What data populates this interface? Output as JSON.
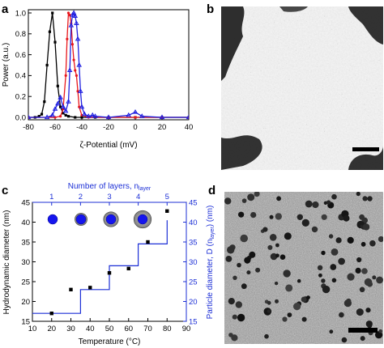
{
  "panels": {
    "a": "a",
    "b": "b",
    "c": "c",
    "d": "d"
  },
  "chart_data": [
    {
      "panel": "a",
      "type": "line",
      "xlabel": "ζ-Potential (mV)",
      "ylabel": "Power (a.u.)",
      "xlim": [
        -80,
        40
      ],
      "ylim": [
        0,
        1.0
      ],
      "xticks": [
        -80,
        -60,
        -40,
        -20,
        0,
        20,
        40
      ],
      "yticks": [
        0.0,
        0.2,
        0.4,
        0.6,
        0.8,
        1.0
      ],
      "ytick_labels": [
        "0.0",
        "0.2",
        "0.4",
        "0.6",
        "0.8",
        "1.0"
      ],
      "series": [
        {
          "color": "#000000",
          "marker": "square",
          "x": [
            -80,
            -75,
            -72,
            -70,
            -68,
            -66,
            -64,
            -62,
            -60,
            -58,
            -56,
            -54,
            -52,
            -50,
            -45,
            -40,
            -30,
            -20,
            0,
            20,
            40
          ],
          "y": [
            0,
            0,
            0.01,
            0.03,
            0.15,
            0.5,
            0.82,
            1.0,
            0.72,
            0.3,
            0.1,
            0.04,
            0.02,
            0.01,
            0,
            0,
            0,
            0,
            0,
            0,
            0
          ]
        },
        {
          "color": "#e8171c",
          "marker": "circle",
          "x": [
            -80,
            -60,
            -56,
            -54,
            -52,
            -51,
            -50,
            -49,
            -48,
            -47,
            -46,
            -45,
            -44,
            -43,
            -42,
            -40,
            -35,
            -20,
            0,
            20,
            40
          ],
          "y": [
            0,
            0,
            0.01,
            0.08,
            0.4,
            0.75,
            1.0,
            0.98,
            0.9,
            0.7,
            0.55,
            0.45,
            0.4,
            0.25,
            0.1,
            0.02,
            0,
            0,
            0,
            0,
            0
          ]
        },
        {
          "color": "#1f1fe0",
          "marker": "triangle",
          "x": [
            -80,
            -66,
            -62,
            -60,
            -58,
            -56,
            -54,
            -52,
            -50,
            -49,
            -48,
            -47,
            -46,
            -45,
            -44,
            -43,
            -42,
            -41,
            -40,
            -38,
            -35,
            -32,
            -30,
            -20,
            -5,
            0,
            5,
            20,
            40
          ],
          "y": [
            0,
            0,
            0.02,
            0.08,
            0.13,
            0.19,
            0.1,
            0.06,
            0.15,
            0.45,
            0.88,
            0.98,
            1.0,
            0.97,
            0.9,
            0.75,
            0.5,
            0.25,
            0.1,
            0.03,
            0.01,
            0.02,
            0.01,
            0,
            0.02,
            0.05,
            0.01,
            0,
            0
          ]
        }
      ]
    },
    {
      "panel": "c",
      "type": "scatter",
      "xlabel": "Temperature (°C)",
      "ylabel": "Hydrodynamic diameter (nm)",
      "ylabel2": "Particle diameter, D (n",
      "ylabel2_sub": "layer",
      "ylabel2_end": ") (nm)",
      "xlabel2": "Number of layers, n",
      "xlabel2_sub": "layer",
      "xlim": [
        10,
        90
      ],
      "ylim": [
        15,
        45
      ],
      "xticks": [
        10,
        20,
        30,
        40,
        50,
        60,
        70,
        80,
        90
      ],
      "yticks": [
        15,
        20,
        25,
        30,
        35,
        40,
        45
      ],
      "x2ticks": [
        1,
        2,
        3,
        4,
        5
      ],
      "x2tick_positions_temp": [
        20,
        35,
        50,
        65,
        80
      ],
      "scatter": {
        "x": [
          20,
          30,
          40,
          50,
          60,
          70,
          80
        ],
        "y": [
          17,
          23,
          23.5,
          27.2,
          28.3,
          35,
          42.8
        ]
      },
      "step": {
        "x": [
          10,
          35,
          35,
          50,
          50,
          65,
          65,
          80,
          80
        ],
        "y": [
          17,
          17,
          23,
          23,
          29,
          29,
          34.5,
          34.5,
          40.5
        ]
      },
      "particle_icons_layers": [
        1,
        2,
        3,
        4
      ],
      "colors": {
        "core": "#1515ee",
        "shell": "#a6a6a6",
        "line": "#1c2fd6"
      }
    }
  ],
  "images": {
    "b": {
      "kind": "TEM micrograph - dense network"
    },
    "d": {
      "kind": "TEM micrograph - dispersed particles"
    }
  }
}
